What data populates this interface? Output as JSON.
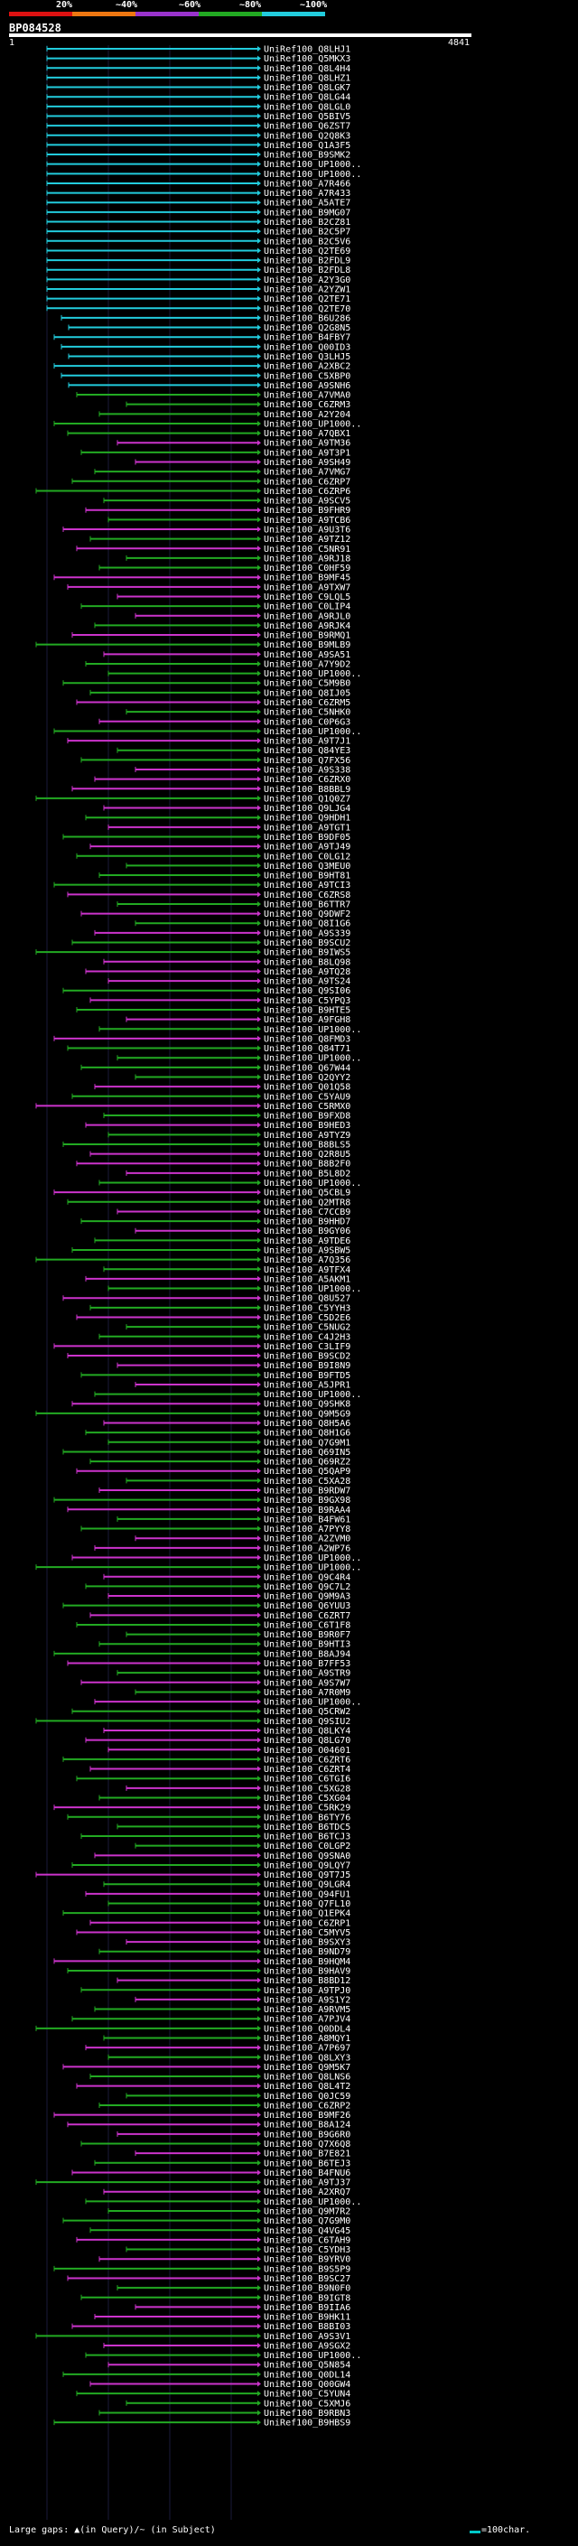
{
  "legend": {
    "labels": [
      "20%",
      "~40%",
      "~60%",
      "~80%",
      "~100%"
    ],
    "colors": [
      "#dd1111",
      "#ee7711",
      "#9933cc",
      "#22aa22",
      "#22ccdd"
    ]
  },
  "query": {
    "id": "BP084528",
    "start": "1",
    "end": "4841"
  },
  "footer": {
    "gaps": "Large gaps: ▲(in Query)/~ (in Subject)",
    "scale": "=100char."
  },
  "hits": [
    "UniRef100_Q8LHJ1",
    "UniRef100_Q5MKX3",
    "UniRef100_Q8L4H4",
    "UniRef100_Q8LHZ1",
    "UniRef100_Q8LGK7",
    "UniRef100_Q8LG44",
    "UniRef100_Q8LGL0",
    "UniRef100_Q5BIV5",
    "UniRef100_Q6ZST7",
    "UniRef100_Q2Q8K3",
    "UniRef100_Q1A3F5",
    "UniRef100_B9SMK2",
    "UniRef100_UP1000..",
    "UniRef100_UP1000..",
    "UniRef100_A7R466",
    "UniRef100_A7R433",
    "UniRef100_A5ATE7",
    "UniRef100_B9MG07",
    "UniRef100_B2CZ81",
    "UniRef100_B2C5P7",
    "UniRef100_B2C5V6",
    "UniRef100_Q2TE69",
    "UniRef100_B2FDL9",
    "UniRef100_B2FDL8",
    "UniRef100_A2Y3G0",
    "UniRef100_A2YZW1",
    "UniRef100_Q2TE71",
    "UniRef100_Q2TE70",
    "UniRef100_B6U286",
    "UniRef100_Q2G8N5",
    "UniRef100_B4FBY7",
    "UniRef100_Q00ID3",
    "UniRef100_Q3LHJ5",
    "UniRef100_A2XBC2",
    "UniRef100_C5XBP0",
    "UniRef100_A9SNH6",
    "UniRef100_A7VMA0",
    "UniRef100_C6ZRM3",
    "UniRef100_A2Y204",
    "UniRef100_UP1000..",
    "UniRef100_A7QBX1",
    "UniRef100_A9TM36",
    "UniRef100_A9T3P1",
    "UniRef100_A9SH49",
    "UniRef100_A7VMG7",
    "UniRef100_C6ZRP7",
    "UniRef100_C6ZRP6",
    "UniRef100_A9SCV5",
    "UniRef100_B9FHR9",
    "UniRef100_A9TCB6",
    "UniRef100_A9U3T6",
    "UniRef100_A9TZ12",
    "UniRef100_C5NR91",
    "UniRef100_A9RJ18",
    "UniRef100_C0HF59",
    "UniRef100_B9MF45",
    "UniRef100_A9TXW7",
    "UniRef100_C9LQL5",
    "UniRef100_C0LIP4",
    "UniRef100_A9RJL0",
    "UniRef100_A9RJK4",
    "UniRef100_B9RMQ1",
    "UniRef100_B9MLB9",
    "UniRef100_A9SA51",
    "UniRef100_A7Y9D2",
    "UniRef100_UP1000..",
    "UniRef100_C5M9B0",
    "UniRef100_Q8IJ05",
    "UniRef100_C6ZRM5",
    "UniRef100_C5NHK0",
    "UniRef100_C0P6G3",
    "UniRef100_UP1000..",
    "UniRef100_A9T7J1",
    "UniRef100_Q84YE3",
    "UniRef100_Q7FX56",
    "UniRef100_A9S338",
    "UniRef100_C6ZRX0",
    "UniRef100_B8BBL9",
    "UniRef100_Q1Q0Z7",
    "UniRef100_Q9LJG4",
    "UniRef100_Q9HDH1",
    "UniRef100_A9TGT1",
    "UniRef100_B9DF05",
    "UniRef100_A9TJ49",
    "UniRef100_C0LG12",
    "UniRef100_Q3MEU0",
    "UniRef100_B9HT81",
    "UniRef100_A9TCI3",
    "UniRef100_C6ZRS8",
    "UniRef100_B6TTR7",
    "UniRef100_Q9DWF2",
    "UniRef100_Q8I1G6",
    "UniRef100_A9S339",
    "UniRef100_B9SCU2",
    "UniRef100_B9IWS5",
    "UniRef100_B8LQ98",
    "UniRef100_A9TQ28",
    "UniRef100_A9TS24",
    "UniRef100_Q9SI06",
    "UniRef100_C5YPQ3",
    "UniRef100_B9HTE5",
    "UniRef100_A9FGH8",
    "UniRef100_UP1000..",
    "UniRef100_Q8FMD3",
    "UniRef100_Q84T71",
    "UniRef100_UP1000..",
    "UniRef100_Q67W44",
    "UniRef100_Q2QYY2",
    "UniRef100_Q01Q58",
    "UniRef100_C5YAU9",
    "UniRef100_C5RMX0",
    "UniRef100_B9FXD8",
    "UniRef100_B9HED3",
    "UniRef100_A9TYZ9",
    "UniRef100_B8BLS5",
    "UniRef100_Q2R8U5",
    "UniRef100_B8B2F0",
    "UniRef100_B5L8D2",
    "UniRef100_UP1000..",
    "UniRef100_Q5CBL9",
    "UniRef100_Q2MTR8",
    "UniRef100_C7CCB9",
    "UniRef100_B9HHD7",
    "UniRef100_B9GY06",
    "UniRef100_A9TDE6",
    "UniRef100_A9SBW5",
    "UniRef100_A7Q356",
    "UniRef100_A9TFX4",
    "UniRef100_A5AKM1",
    "UniRef100_UP1000..",
    "UniRef100_Q8U527",
    "UniRef100_C5YYH3",
    "UniRef100_C5D2E6",
    "UniRef100_C5NUG2",
    "UniRef100_C4J2H3",
    "UniRef100_C3LIF9",
    "UniRef100_B9SCD2",
    "UniRef100_B9I8N9",
    "UniRef100_B9FTD5",
    "UniRef100_A5JPR1",
    "UniRef100_UP1000..",
    "UniRef100_Q9SHK8",
    "UniRef100_Q9M5G9",
    "UniRef100_Q8H5A6",
    "UniRef100_Q8H1G6",
    "UniRef100_Q7G9M1",
    "UniRef100_Q69IN5",
    "UniRef100_Q69RZ2",
    "UniRef100_Q5QAP9",
    "UniRef100_C5XA28",
    "UniRef100_B9RDW7",
    "UniRef100_B9GX98",
    "UniRef100_B9RAA4",
    "UniRef100_B4FW61",
    "UniRef100_A7PYY8",
    "UniRef100_A2ZVM0",
    "UniRef100_A2WP76",
    "UniRef100_UP1000..",
    "UniRef100_UP1000..",
    "UniRef100_Q9C4R4",
    "UniRef100_Q9C7L2",
    "UniRef100_Q9M9A3",
    "UniRef100_Q6YUU3",
    "UniRef100_C6ZRT7",
    "UniRef100_C6T1F8",
    "UniRef100_B9R0F7",
    "UniRef100_B9HTI3",
    "UniRef100_B8AJ94",
    "UniRef100_B7FF53",
    "UniRef100_A9STR9",
    "UniRef100_A9S7W7",
    "UniRef100_A7R0M9",
    "UniRef100_UP1000..",
    "UniRef100_Q5CRW2",
    "UniRef100_Q9SIU2",
    "UniRef100_Q8LKY4",
    "UniRef100_Q8LG70",
    "UniRef100_O04601",
    "UniRef100_C6ZRT6",
    "UniRef100_C6ZRT4",
    "UniRef100_C6TGI6",
    "UniRef100_C5XG28",
    "UniRef100_C5XG04",
    "UniRef100_C5RK29",
    "UniRef100_B6TY76",
    "UniRef100_B6TDC5",
    "UniRef100_B6TCJ3",
    "UniRef100_C0LGP2",
    "UniRef100_Q9SNA0",
    "UniRef100_Q9LQY7",
    "UniRef100_Q9T7J5",
    "UniRef100_Q9LGR4",
    "UniRef100_Q94FU1",
    "UniRef100_Q7FL10",
    "UniRef100_Q1EPK4",
    "UniRef100_C6ZRP1",
    "UniRef100_C5MYV5",
    "UniRef100_B9SXY3",
    "UniRef100_B9ND79",
    "UniRef100_B9HQM4",
    "UniRef100_B9HAV9",
    "UniRef100_B8BD12",
    "UniRef100_A9TPJ0",
    "UniRef100_A9S1Y2",
    "UniRef100_A9RVM5",
    "UniRef100_A7PJV4",
    "UniRef100_Q0DDL4",
    "UniRef100_A8MQY1",
    "UniRef100_A7P697",
    "UniRef100_Q8LXY3",
    "UniRef100_Q9M5K7",
    "UniRef100_Q8LNS6",
    "UniRef100_Q8L4T2",
    "UniRef100_Q0JC59",
    "UniRef100_C6ZRP2",
    "UniRef100_B9MF26",
    "UniRef100_B8A124",
    "UniRef100_B9G6R0",
    "UniRef100_Q7X6Q8",
    "UniRef100_B7E821",
    "UniRef100_B6TEJ3",
    "UniRef100_B4FNU6",
    "UniRef100_A9TJ37",
    "UniRef100_A2XRQ7",
    "UniRef100_UP1000..",
    "UniRef100_Q9M7R2",
    "UniRef100_Q7G9M0",
    "UniRef100_Q4VG45",
    "UniRef100_C6TAH9",
    "UniRef100_C5YDH3",
    "UniRef100_B9YRV0",
    "UniRef100_B9S5P9",
    "UniRef100_B9SC27",
    "UniRef100_B9N0F0",
    "UniRef100_B9IGT8",
    "UniRef100_B9IIA6",
    "UniRef100_B9HK11",
    "UniRef100_B8BI03",
    "UniRef100_A9S3V1",
    "UniRef100_A9SGX2",
    "UniRef100_UP1000..",
    "UniRef100_Q5N854",
    "UniRef100_Q0DL14",
    "UniRef100_Q00GW4",
    "UniRef100_C5YUN4",
    "UniRef100_C5XMJ6",
    "UniRef100_B9RBN3",
    "UniRef100_B9HBS9"
  ]
}
